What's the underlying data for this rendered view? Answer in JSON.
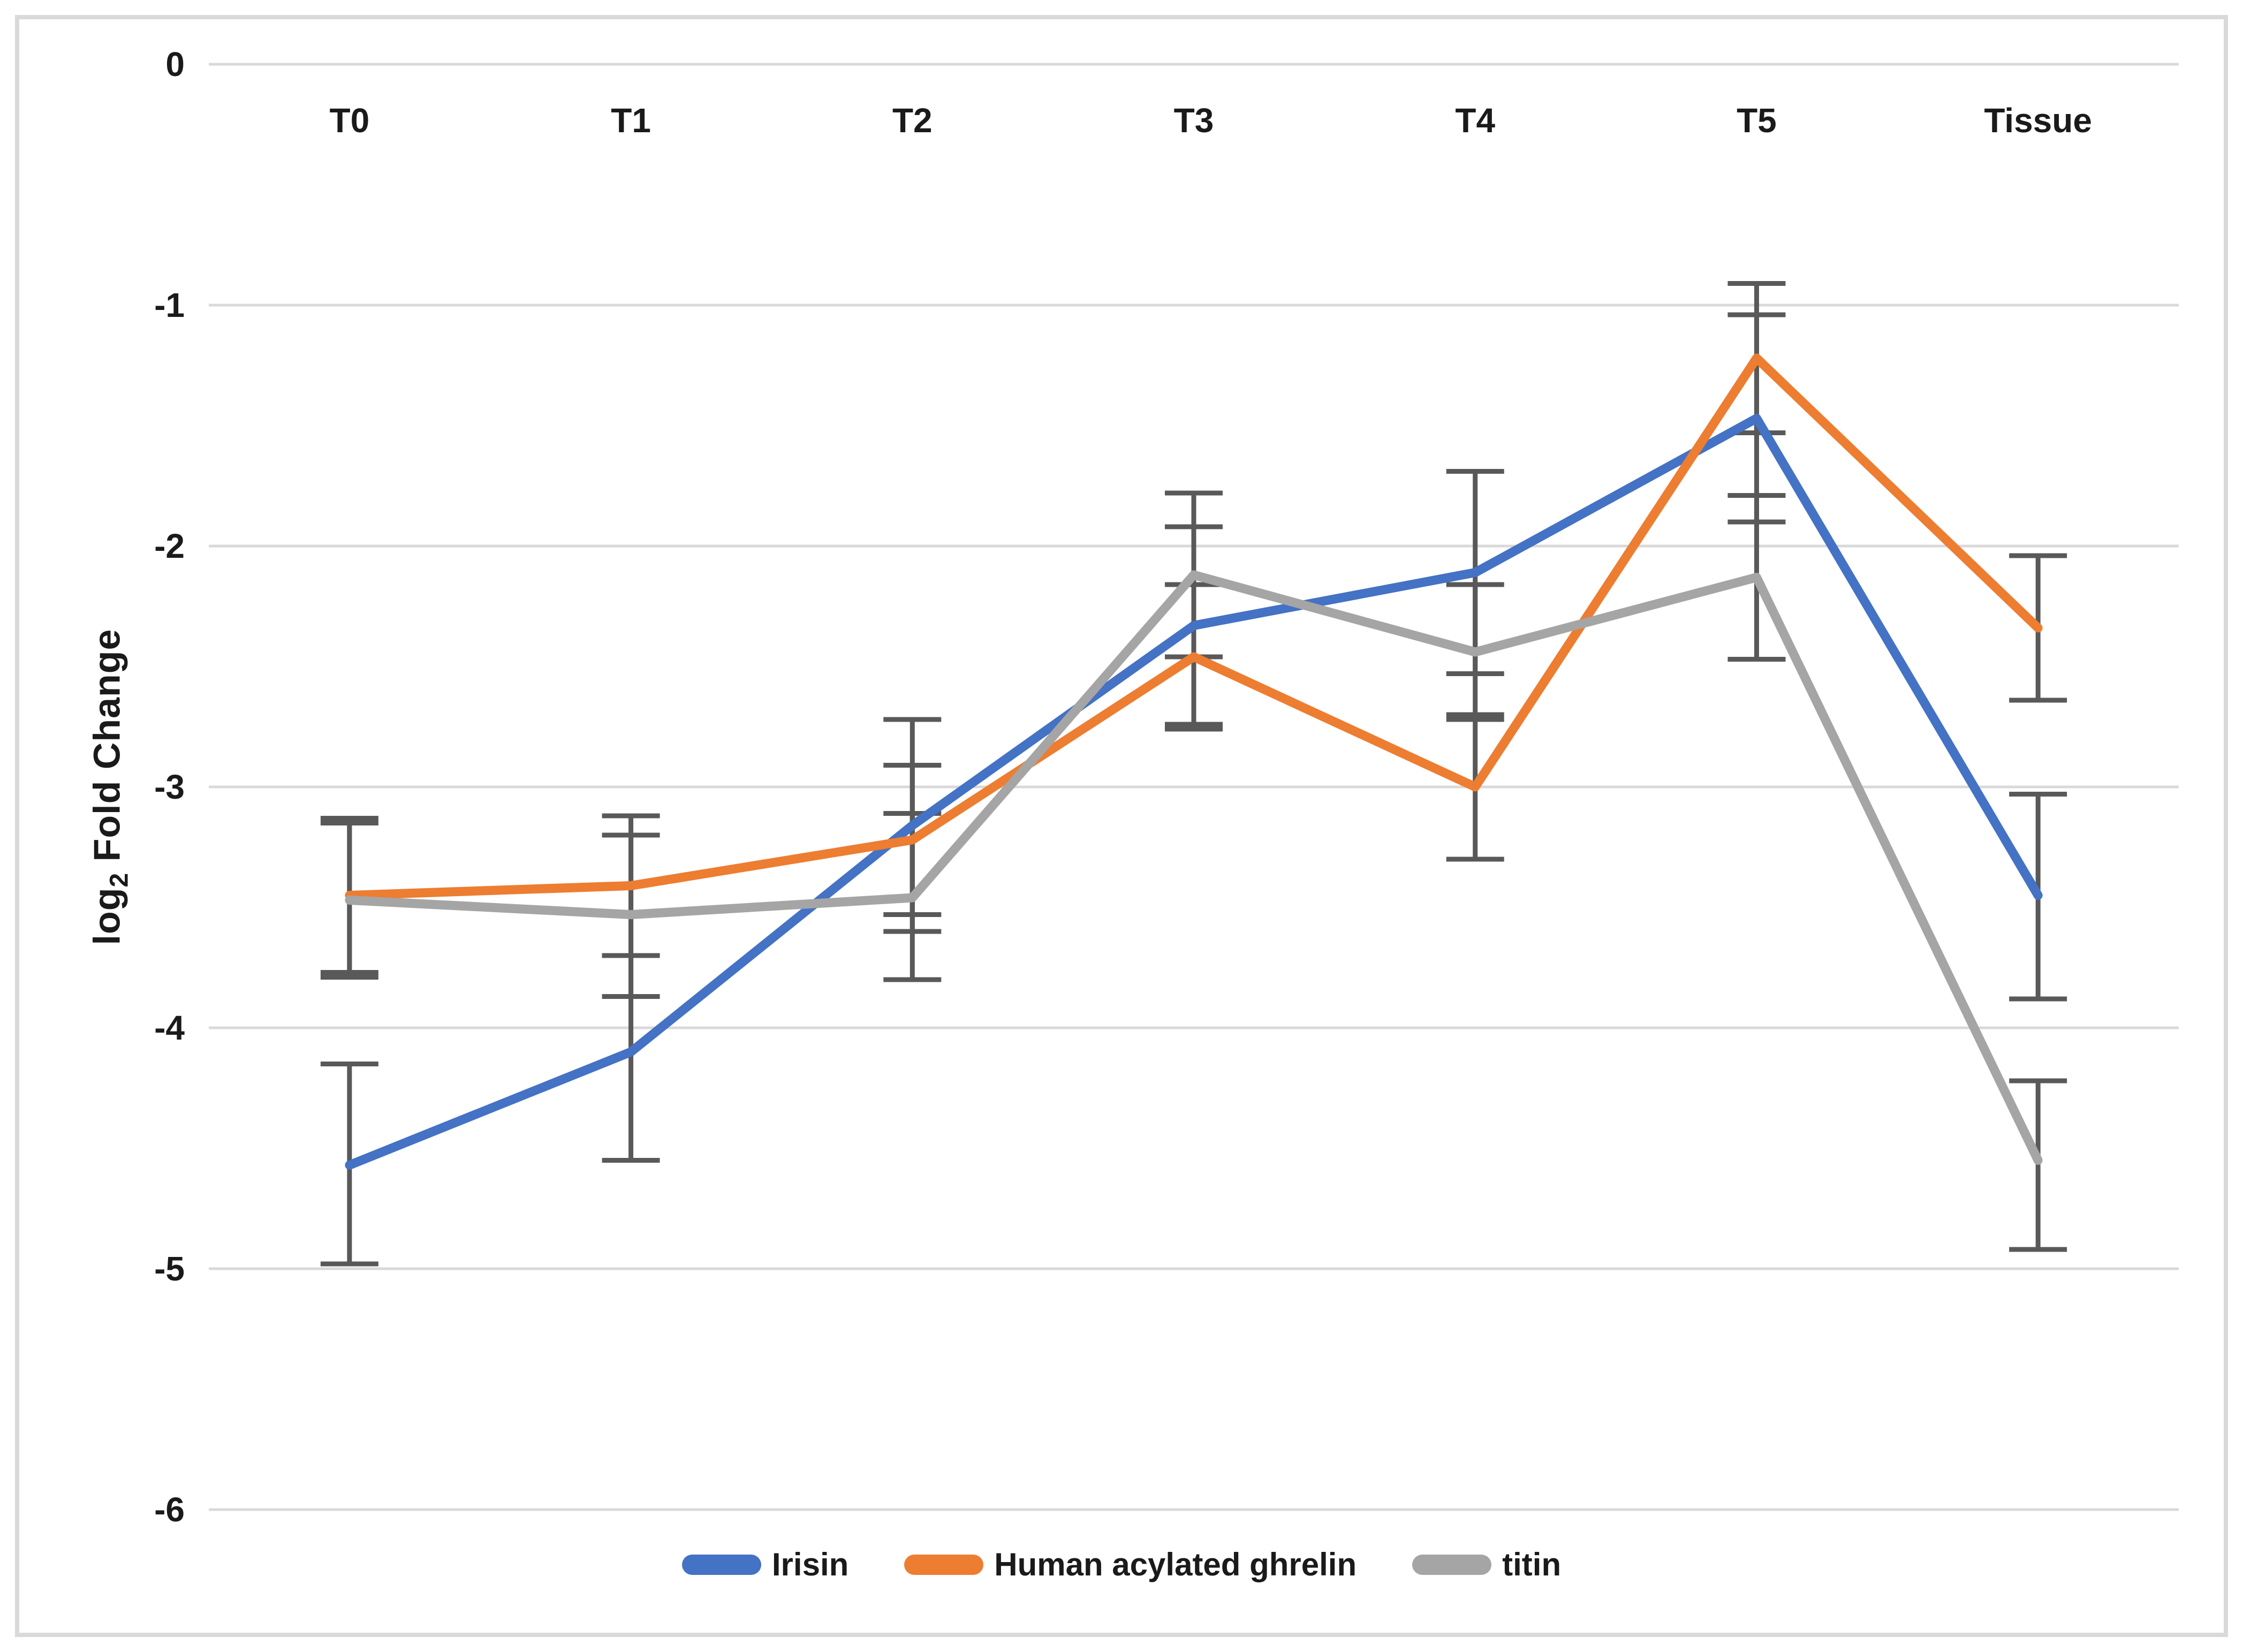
{
  "figure": {
    "background": "#FFFFFF",
    "frame_border_color": "#D9D9D9"
  },
  "y_axis": {
    "title_prefix": "log",
    "title_subscript": "2",
    "title_suffix": " Fold Change",
    "tick_labels": [
      "0",
      "-1",
      "-2",
      "-3",
      "-4",
      "-5",
      "-6"
    ],
    "tick_values": [
      0,
      -1,
      -2,
      -3,
      -4,
      -5,
      -6
    ]
  },
  "x_axis": {
    "categories": [
      "T0",
      "T1",
      "T2",
      "T3",
      "T4",
      "T5",
      "Tissue"
    ]
  },
  "legend": {
    "position": "bottom",
    "items": [
      "Irisin",
      "Human acylated ghrelin",
      "titin"
    ]
  },
  "style": {
    "gridline_color": "#D9D9D9",
    "error_bar_color": "#595959",
    "text_color": "#1a1a1a"
  },
  "chart_data": {
    "type": "line",
    "title": "",
    "xlabel": "",
    "ylabel": "log2 Fold Change",
    "ylim": [
      -6,
      0
    ],
    "grid": true,
    "legend_position": "bottom",
    "categories": [
      "T0",
      "T1",
      "T2",
      "T3",
      "T4",
      "T5",
      "Tissue"
    ],
    "series": [
      {
        "name": "Irisin",
        "color": "#4472C4",
        "values": [
          -4.57,
          -4.1,
          -3.16,
          -2.33,
          -2.11,
          -1.47,
          -3.45
        ],
        "error_top": [
          -4.15,
          -3.7,
          -2.72,
          -1.92,
          -1.69,
          -1.04,
          -3.03
        ],
        "error_bottom": [
          -4.98,
          -4.55,
          -3.6,
          -2.74,
          -2.53,
          -1.9,
          -3.88
        ]
      },
      {
        "name": "Human acylated ghrelin",
        "color": "#ED7D31",
        "values": [
          -3.45,
          -3.41,
          -3.22,
          -2.46,
          -3.0,
          -1.22,
          -2.34
        ],
        "error_top": [
          -3.13,
          -3.12,
          -2.91,
          -2.16,
          -2.7,
          -0.91,
          -2.04
        ],
        "error_bottom": [
          -3.77,
          -3.7,
          -3.53,
          -2.76,
          -3.3,
          -1.53,
          -2.64
        ]
      },
      {
        "name": "titin",
        "color": "#A5A5A5",
        "values": [
          -3.47,
          -3.53,
          -3.46,
          -2.12,
          -2.44,
          -2.13,
          -4.55
        ],
        "error_top": [
          -3.15,
          -3.2,
          -3.11,
          -1.78,
          -2.16,
          -1.79,
          -4.22
        ],
        "error_bottom": [
          -3.79,
          -3.87,
          -3.8,
          -2.46,
          -2.72,
          -2.47,
          -4.92
        ]
      }
    ]
  }
}
